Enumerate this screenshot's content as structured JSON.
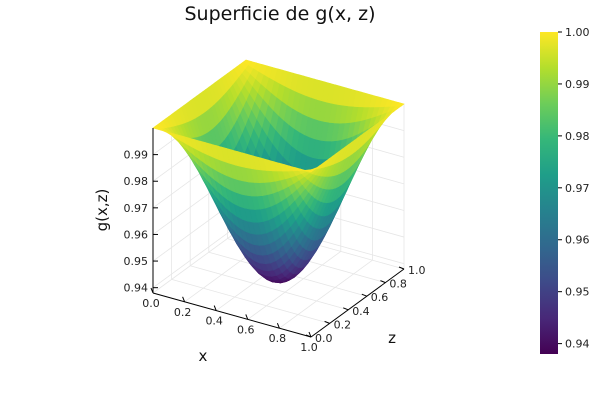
{
  "chart_data": {
    "type": "surface",
    "title": "Superficie de g(x, z)",
    "xlabel": "x",
    "zlabel": "z",
    "ylabel": "g(x,z)",
    "xlim": [
      0.0,
      1.0
    ],
    "zlim": [
      0.0,
      1.0
    ],
    "ylim": [
      0.938,
      1.0
    ],
    "x_ticks": [
      "0.0",
      "0.2",
      "0.4",
      "0.6",
      "0.8",
      "1.0"
    ],
    "z_ticks": [
      "0.0",
      "0.2",
      "0.4",
      "0.6",
      "0.8",
      "1.0"
    ],
    "y_ticks": [
      "0.94",
      "0.95",
      "0.96",
      "0.97",
      "0.98",
      "0.99"
    ],
    "colorbar": {
      "colormap": "viridis",
      "range": [
        0.938,
        1.0
      ],
      "ticks": [
        "0.94",
        "0.95",
        "0.96",
        "0.97",
        "0.98",
        "0.99",
        "1.00"
      ]
    },
    "surface_min": 0.938,
    "surface_max": 1.0,
    "grid": true
  }
}
